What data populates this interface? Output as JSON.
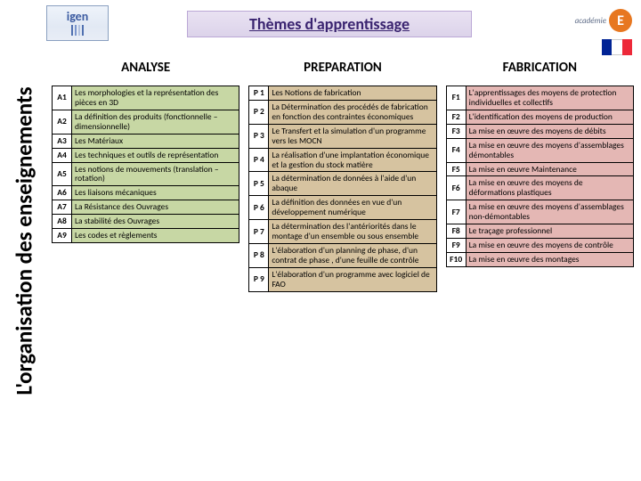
{
  "meta": {
    "sidebar_title": "L'organisation des enseignements",
    "main_title": "Thèmes d'apprentissage",
    "igen_label": "igen",
    "academie_label": "académie",
    "e_badge": "E"
  },
  "columns": {
    "analyse": {
      "header": "ANALYSE",
      "color": "#c7d7a4",
      "rows": [
        {
          "code": "A1",
          "text": "Les morphologies et la représentation des pièces en 3D"
        },
        {
          "code": "A2",
          "text": "La définition des produits (fonctionnelle – dimensionnelle)"
        },
        {
          "code": "A3",
          "text": "Les Matériaux"
        },
        {
          "code": "A4",
          "text": "Les techniques et outils de représentation"
        },
        {
          "code": "A5",
          "text": "Les notions de mouvements (translation – rotation)"
        },
        {
          "code": "A6",
          "text": "Les liaisons mécaniques"
        },
        {
          "code": "A7",
          "text": "La Résistance des Ouvrages"
        },
        {
          "code": "A8",
          "text": "La stabilité des Ouvrages"
        },
        {
          "code": "A9",
          "text": "Les codes et règlements"
        }
      ]
    },
    "prep": {
      "header": "PREPARATION",
      "color": "#d6c3a0",
      "rows": [
        {
          "code": "P 1",
          "text": "Les Notions de fabrication"
        },
        {
          "code": "P 2",
          "text": "La Détermination des procédés de fabrication en fonction des contraintes économiques"
        },
        {
          "code": "P 3",
          "text": "Le Transfert et la simulation d'un programme vers les MOCN"
        },
        {
          "code": "P 4",
          "text": "La réalisation d'une implantation économique et la gestion du stock matière"
        },
        {
          "code": "P 5",
          "text": "La détermination de données à l'aide d'un abaque"
        },
        {
          "code": "P 6",
          "text": "La définition des données en vue d'un développement numérique"
        },
        {
          "code": "P 7",
          "text": "La détermination des l'antériorités dans le montage d'un ensemble ou sous ensemble"
        },
        {
          "code": "P 8",
          "text": "L'élaboration d'un planning de phase, d'un contrat de phase , d'une feuille de contrôle"
        },
        {
          "code": "P 9",
          "text": "L'élaboration d'un programme avec logiciel de FAO"
        }
      ]
    },
    "fab": {
      "header": "FABRICATION",
      "color": "#e4b7b4",
      "rows": [
        {
          "code": "F1",
          "text": "L'apprentissages des moyens de protection individuelles et collectifs"
        },
        {
          "code": "F2",
          "text": "L'identification des moyens de production"
        },
        {
          "code": "F3",
          "text": "La mise en œuvre des moyens de débits"
        },
        {
          "code": "F4",
          "text": "La mise en œuvre des moyens d'assemblages démontables"
        },
        {
          "code": "F5",
          "text": "La mise en œuvre Maintenance"
        },
        {
          "code": "F6",
          "text": "La mise en œuvre des moyens de déformations plastiques"
        },
        {
          "code": "F7",
          "text": "La mise en œuvre des moyens d'assemblages non-démontables"
        },
        {
          "code": "F8",
          "text": "Le traçage professionnel"
        },
        {
          "code": "F9",
          "text": "La mise  en œuvre des moyens de contrôle"
        },
        {
          "code": "F10",
          "text": "La mise en œuvre des montages"
        }
      ]
    }
  }
}
